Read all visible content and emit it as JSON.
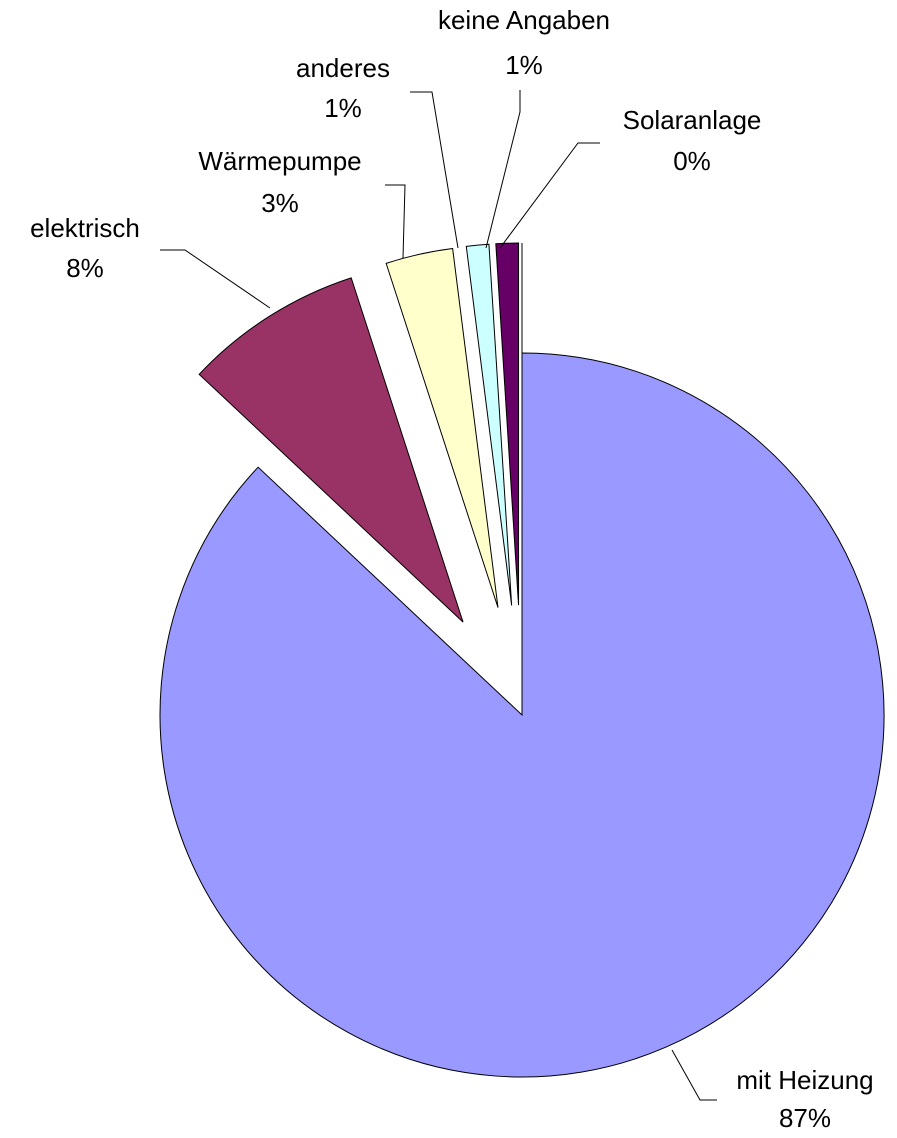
{
  "chart_data": {
    "type": "pie",
    "categories": [
      "mit Heizung",
      "elektrisch",
      "Wärmepumpe",
      "anderes",
      "keine Angaben",
      "Solaranlage"
    ],
    "values": [
      87,
      8,
      3,
      1,
      1,
      0
    ],
    "value_labels": [
      "87%",
      "8%",
      "3%",
      "1%",
      "1%",
      "0%"
    ],
    "colors": [
      "#9999ff",
      "#993366",
      "#ffffcc",
      "#ccffff",
      "#660066",
      "#ff8080"
    ]
  }
}
